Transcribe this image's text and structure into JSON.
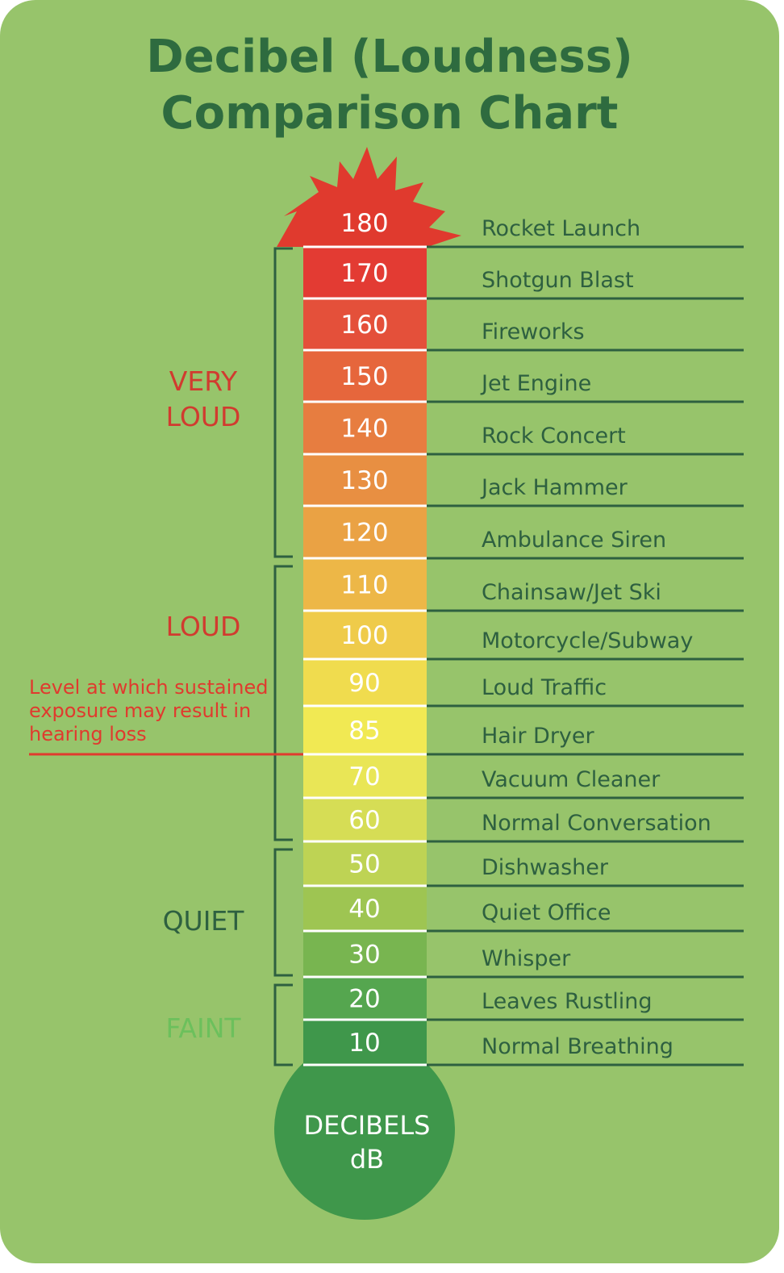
{
  "title_line1": "Decibel (Loudness)",
  "title_line2": "Comparison Chart",
  "chart_data": {
    "type": "table",
    "title": "Decibel (Loudness) Comparison Chart",
    "unit_label_line1": "DECIBELS",
    "unit_label_line2": "dB",
    "rows": [
      {
        "db": 180,
        "source": "Rocket Launch",
        "color": "#e03a2e"
      },
      {
        "db": 170,
        "source": "Shotgun Blast",
        "color": "#e33b33"
      },
      {
        "db": 160,
        "source": "Fireworks",
        "color": "#e4503a"
      },
      {
        "db": 150,
        "source": "Jet Engine",
        "color": "#e6663c"
      },
      {
        "db": 140,
        "source": "Rock Concert",
        "color": "#e77d40"
      },
      {
        "db": 130,
        "source": "Jack Hammer",
        "color": "#e88f42"
      },
      {
        "db": 120,
        "source": "Ambulance Siren",
        "color": "#eaa244"
      },
      {
        "db": 110,
        "source": "Chainsaw/Jet Ski",
        "color": "#edb747"
      },
      {
        "db": 100,
        "source": "Motorcycle/Subway",
        "color": "#efcb4a"
      },
      {
        "db": 90,
        "source": "Loud Traffic",
        "color": "#f0dc4e"
      },
      {
        "db": 85,
        "source": "Hair Dryer",
        "color": "#f1e953"
      },
      {
        "db": 70,
        "source": "Vacuum Cleaner",
        "color": "#e9e656"
      },
      {
        "db": 60,
        "source": "Normal Conversation",
        "color": "#d6dd55"
      },
      {
        "db": 50,
        "source": "Dishwasher",
        "color": "#bed354"
      },
      {
        "db": 40,
        "source": "Quiet Office",
        "color": "#9ec552"
      },
      {
        "db": 30,
        "source": "Whisper",
        "color": "#78b550"
      },
      {
        "db": 20,
        "source": "Leaves Rustling",
        "color": "#55a64f"
      },
      {
        "db": 10,
        "source": "Normal Breathing",
        "color": "#3f974b"
      }
    ],
    "categories": [
      {
        "lines": [
          "VERY",
          "LOUD"
        ],
        "color": "#d13b2f",
        "from_db": 170,
        "to_db": 120
      },
      {
        "lines": [
          "LOUD"
        ],
        "color": "#d13b2f",
        "from_db": 110,
        "to_db": 60
      },
      {
        "lines": [
          "QUIET"
        ],
        "color": "#2e6040",
        "from_db": 50,
        "to_db": 30
      },
      {
        "lines": [
          "FAINT"
        ],
        "color": "#6cc05c",
        "from_db": 20,
        "to_db": 10
      }
    ],
    "hearing_loss_note": {
      "lines": [
        "Level at which sustained",
        "exposure may result in",
        "hearing loss"
      ],
      "color": "#e03a2e",
      "below_db": 85
    }
  },
  "colors": {
    "background": "#97c46b",
    "title": "#2e6b3f",
    "rule_line": "#2e6040",
    "bulb": "#3f974b"
  }
}
